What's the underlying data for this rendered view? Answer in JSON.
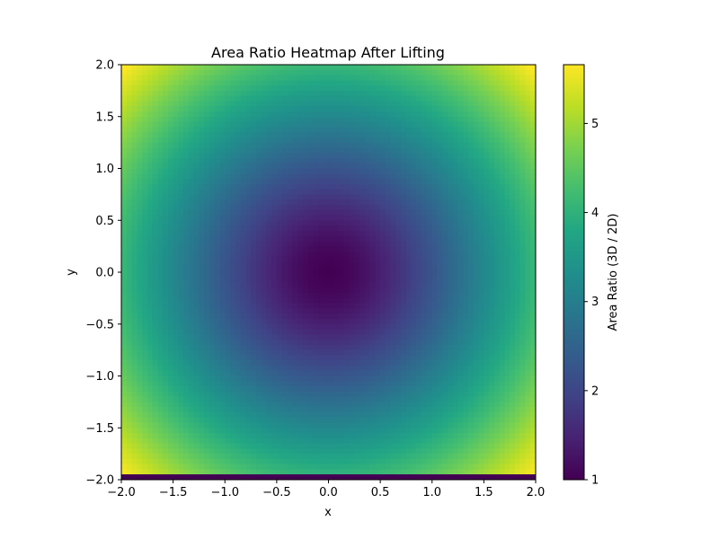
{
  "chart_data": {
    "type": "heatmap",
    "title": "Area Ratio Heatmap After Lifting",
    "xlabel": "x",
    "ylabel": "y",
    "xlim": [
      -2.0,
      2.0
    ],
    "ylim": [
      -2.0,
      2.0
    ],
    "x_ticks": [
      "−2.0",
      "−1.5",
      "−1.0",
      "−0.5",
      "0.0",
      "0.5",
      "1.0",
      "1.5",
      "2.0"
    ],
    "y_ticks": [
      "−2.0",
      "−1.5",
      "−1.0",
      "−0.5",
      "0.0",
      "0.5",
      "1.0",
      "1.5",
      "2.0"
    ],
    "x_tick_values": [
      -2.0,
      -1.5,
      -1.0,
      -0.5,
      0.0,
      0.5,
      1.0,
      1.5,
      2.0
    ],
    "y_tick_values": [
      -2.0,
      -1.5,
      -1.0,
      -0.5,
      0.0,
      0.5,
      1.0,
      1.5,
      2.0
    ],
    "grid_resolution": 80,
    "value_function": "sqrt(1 + 4*x^2 + 4*y^2)",
    "bottom_row_value": 1.0,
    "colormap": "viridis",
    "colorbar": {
      "label": "Area Ratio (3D / 2D)",
      "range": [
        1.0,
        5.66
      ],
      "ticks": [
        "1",
        "2",
        "3",
        "4",
        "5"
      ],
      "tick_values": [
        1,
        2,
        3,
        4,
        5
      ]
    },
    "grid": false
  }
}
